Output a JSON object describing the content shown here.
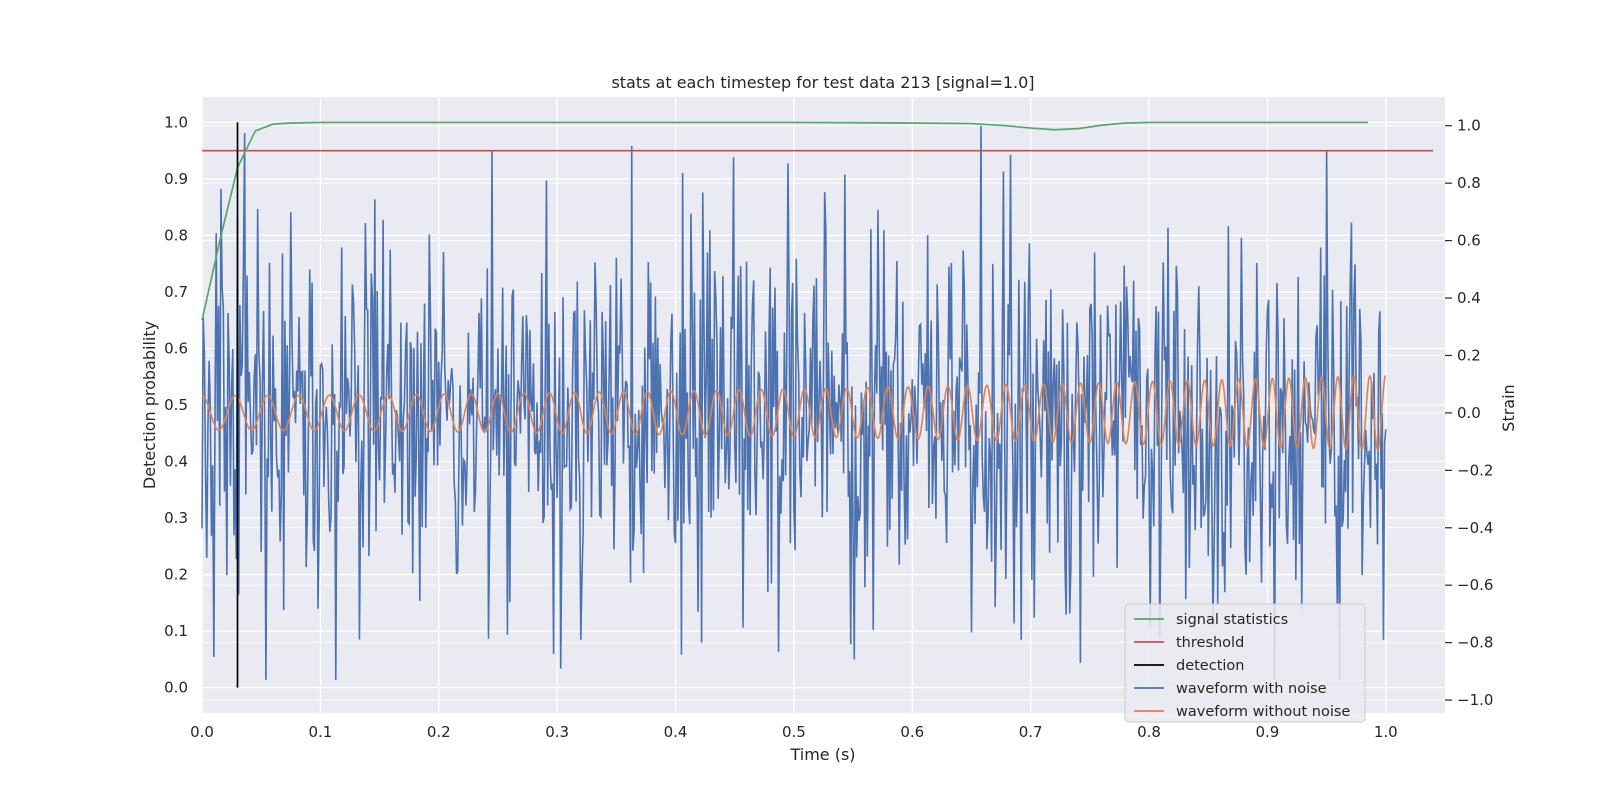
{
  "chart_data": {
    "type": "line",
    "title": "stats at each timestep for test data 213 [signal=1.0]",
    "xlabel": "Time (s)",
    "ylabel_left": "Detection probability",
    "ylabel_right": "Strain",
    "xlim": [
      0.0,
      1.05
    ],
    "ylim_left": [
      -0.045,
      1.045
    ],
    "ylim_right": [
      -1.045,
      1.1
    ],
    "x_ticks": [
      "0.0",
      "0.1",
      "0.2",
      "0.3",
      "0.4",
      "0.5",
      "0.6",
      "0.7",
      "0.8",
      "0.9",
      "1.0"
    ],
    "y_left_ticks": [
      "0.0",
      "0.1",
      "0.2",
      "0.3",
      "0.4",
      "0.5",
      "0.6",
      "0.7",
      "0.8",
      "0.9",
      "1.0"
    ],
    "y_right_ticks": [
      "−1.0",
      "−0.8",
      "−0.6",
      "−0.4",
      "−0.2",
      "0.0",
      "0.2",
      "0.4",
      "0.6",
      "0.8",
      "1.0"
    ],
    "grid": true,
    "legend_position": "lower-right",
    "colors": {
      "signal_statistics": "#55a868",
      "threshold": "#c44e52",
      "detection": "#000000",
      "waveform_with_noise": "#4c72b0",
      "waveform_without_noise": "#dd8452",
      "plot_background": "#eaeaf2",
      "grid": "#ffffff"
    },
    "series": [
      {
        "name": "signal statistics",
        "axis": "left",
        "x": [
          0.0,
          0.015,
          0.03,
          0.045,
          0.06,
          0.075,
          0.1,
          0.2,
          0.3,
          0.4,
          0.5,
          0.6,
          0.65,
          0.68,
          0.7,
          0.72,
          0.74,
          0.76,
          0.78,
          0.8,
          0.9,
          0.985
        ],
        "y": [
          0.65,
          0.79,
          0.92,
          0.985,
          0.997,
          0.999,
          1.0,
          1.0,
          1.0,
          1.0,
          1.0,
          0.999,
          0.998,
          0.994,
          0.99,
          0.987,
          0.989,
          0.995,
          0.999,
          1.0,
          1.0,
          1.0
        ]
      },
      {
        "name": "threshold",
        "axis": "left",
        "x": [
          0.0,
          1.04
        ],
        "y": [
          0.95,
          0.95
        ]
      },
      {
        "name": "detection",
        "axis": "left",
        "x": [
          0.03,
          0.03
        ],
        "y": [
          0.0,
          1.0
        ]
      },
      {
        "name": "waveform with noise",
        "axis": "right",
        "x_range": [
          0.0,
          1.0
        ],
        "samples": 1000,
        "y_range": [
          -0.93,
          1.0
        ],
        "spikes": [
          {
            "x": 0.016,
            "y": 0.78
          },
          {
            "x": 0.01,
            "y": -0.85
          },
          {
            "x": 0.245,
            "y": 0.91
          },
          {
            "x": 0.363,
            "y": 0.93
          },
          {
            "x": 0.449,
            "y": 0.89
          },
          {
            "x": 0.422,
            "y": -0.8
          },
          {
            "x": 0.32,
            "y": -0.79
          },
          {
            "x": 0.658,
            "y": 1.0
          },
          {
            "x": 0.692,
            "y": -0.79
          },
          {
            "x": 0.95,
            "y": 0.91
          },
          {
            "x": 0.961,
            "y": -0.93
          },
          {
            "x": 0.998,
            "y": -0.79
          }
        ]
      },
      {
        "name": "waveform without noise",
        "axis": "right",
        "x_range": [
          0.0,
          1.0
        ],
        "amplitude_start": 0.06,
        "amplitude_end": 0.13,
        "cycles_start_hz": 35,
        "cycles_end_hz": 75
      }
    ]
  }
}
